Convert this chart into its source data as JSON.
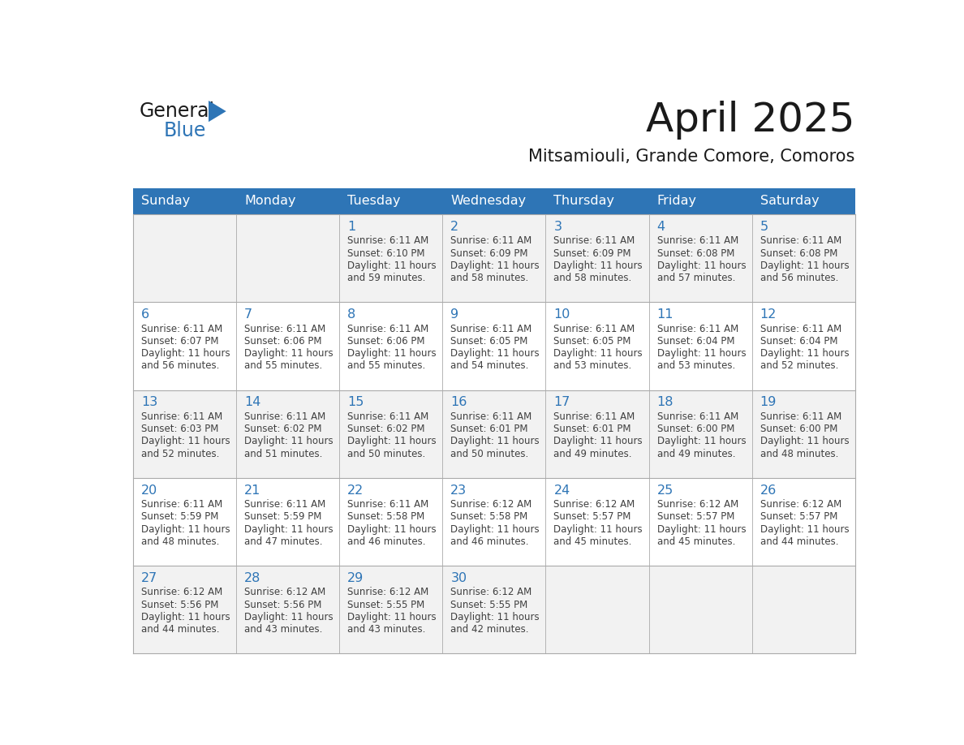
{
  "title": "April 2025",
  "subtitle": "Mitsamiouli, Grande Comore, Comoros",
  "header_bg_color": "#2E75B6",
  "header_text_color": "#FFFFFF",
  "text_color": "#404040",
  "day_number_color": "#2E75B6",
  "grid_line_color": "#AAAAAA",
  "cell_bg_white": "#FFFFFF",
  "cell_bg_gray": "#F2F2F2",
  "days_of_week": [
    "Sunday",
    "Monday",
    "Tuesday",
    "Wednesday",
    "Thursday",
    "Friday",
    "Saturday"
  ],
  "weeks": [
    [
      {
        "day": "",
        "info": ""
      },
      {
        "day": "",
        "info": ""
      },
      {
        "day": "1",
        "info": "Sunrise: 6:11 AM\nSunset: 6:10 PM\nDaylight: 11 hours\nand 59 minutes."
      },
      {
        "day": "2",
        "info": "Sunrise: 6:11 AM\nSunset: 6:09 PM\nDaylight: 11 hours\nand 58 minutes."
      },
      {
        "day": "3",
        "info": "Sunrise: 6:11 AM\nSunset: 6:09 PM\nDaylight: 11 hours\nand 58 minutes."
      },
      {
        "day": "4",
        "info": "Sunrise: 6:11 AM\nSunset: 6:08 PM\nDaylight: 11 hours\nand 57 minutes."
      },
      {
        "day": "5",
        "info": "Sunrise: 6:11 AM\nSunset: 6:08 PM\nDaylight: 11 hours\nand 56 minutes."
      }
    ],
    [
      {
        "day": "6",
        "info": "Sunrise: 6:11 AM\nSunset: 6:07 PM\nDaylight: 11 hours\nand 56 minutes."
      },
      {
        "day": "7",
        "info": "Sunrise: 6:11 AM\nSunset: 6:06 PM\nDaylight: 11 hours\nand 55 minutes."
      },
      {
        "day": "8",
        "info": "Sunrise: 6:11 AM\nSunset: 6:06 PM\nDaylight: 11 hours\nand 55 minutes."
      },
      {
        "day": "9",
        "info": "Sunrise: 6:11 AM\nSunset: 6:05 PM\nDaylight: 11 hours\nand 54 minutes."
      },
      {
        "day": "10",
        "info": "Sunrise: 6:11 AM\nSunset: 6:05 PM\nDaylight: 11 hours\nand 53 minutes."
      },
      {
        "day": "11",
        "info": "Sunrise: 6:11 AM\nSunset: 6:04 PM\nDaylight: 11 hours\nand 53 minutes."
      },
      {
        "day": "12",
        "info": "Sunrise: 6:11 AM\nSunset: 6:04 PM\nDaylight: 11 hours\nand 52 minutes."
      }
    ],
    [
      {
        "day": "13",
        "info": "Sunrise: 6:11 AM\nSunset: 6:03 PM\nDaylight: 11 hours\nand 52 minutes."
      },
      {
        "day": "14",
        "info": "Sunrise: 6:11 AM\nSunset: 6:02 PM\nDaylight: 11 hours\nand 51 minutes."
      },
      {
        "day": "15",
        "info": "Sunrise: 6:11 AM\nSunset: 6:02 PM\nDaylight: 11 hours\nand 50 minutes."
      },
      {
        "day": "16",
        "info": "Sunrise: 6:11 AM\nSunset: 6:01 PM\nDaylight: 11 hours\nand 50 minutes."
      },
      {
        "day": "17",
        "info": "Sunrise: 6:11 AM\nSunset: 6:01 PM\nDaylight: 11 hours\nand 49 minutes."
      },
      {
        "day": "18",
        "info": "Sunrise: 6:11 AM\nSunset: 6:00 PM\nDaylight: 11 hours\nand 49 minutes."
      },
      {
        "day": "19",
        "info": "Sunrise: 6:11 AM\nSunset: 6:00 PM\nDaylight: 11 hours\nand 48 minutes."
      }
    ],
    [
      {
        "day": "20",
        "info": "Sunrise: 6:11 AM\nSunset: 5:59 PM\nDaylight: 11 hours\nand 48 minutes."
      },
      {
        "day": "21",
        "info": "Sunrise: 6:11 AM\nSunset: 5:59 PM\nDaylight: 11 hours\nand 47 minutes."
      },
      {
        "day": "22",
        "info": "Sunrise: 6:11 AM\nSunset: 5:58 PM\nDaylight: 11 hours\nand 46 minutes."
      },
      {
        "day": "23",
        "info": "Sunrise: 6:12 AM\nSunset: 5:58 PM\nDaylight: 11 hours\nand 46 minutes."
      },
      {
        "day": "24",
        "info": "Sunrise: 6:12 AM\nSunset: 5:57 PM\nDaylight: 11 hours\nand 45 minutes."
      },
      {
        "day": "25",
        "info": "Sunrise: 6:12 AM\nSunset: 5:57 PM\nDaylight: 11 hours\nand 45 minutes."
      },
      {
        "day": "26",
        "info": "Sunrise: 6:12 AM\nSunset: 5:57 PM\nDaylight: 11 hours\nand 44 minutes."
      }
    ],
    [
      {
        "day": "27",
        "info": "Sunrise: 6:12 AM\nSunset: 5:56 PM\nDaylight: 11 hours\nand 44 minutes."
      },
      {
        "day": "28",
        "info": "Sunrise: 6:12 AM\nSunset: 5:56 PM\nDaylight: 11 hours\nand 43 minutes."
      },
      {
        "day": "29",
        "info": "Sunrise: 6:12 AM\nSunset: 5:55 PM\nDaylight: 11 hours\nand 43 minutes."
      },
      {
        "day": "30",
        "info": "Sunrise: 6:12 AM\nSunset: 5:55 PM\nDaylight: 11 hours\nand 42 minutes."
      },
      {
        "day": "",
        "info": ""
      },
      {
        "day": "",
        "info": ""
      },
      {
        "day": "",
        "info": ""
      }
    ]
  ],
  "logo_text1": "General",
  "logo_text2": "Blue",
  "logo_color1": "#1a1a1a",
  "logo_color2": "#2E75B6",
  "logo_triangle_color": "#2E75B6",
  "fig_width": 11.88,
  "fig_height": 9.18,
  "dpi": 100
}
